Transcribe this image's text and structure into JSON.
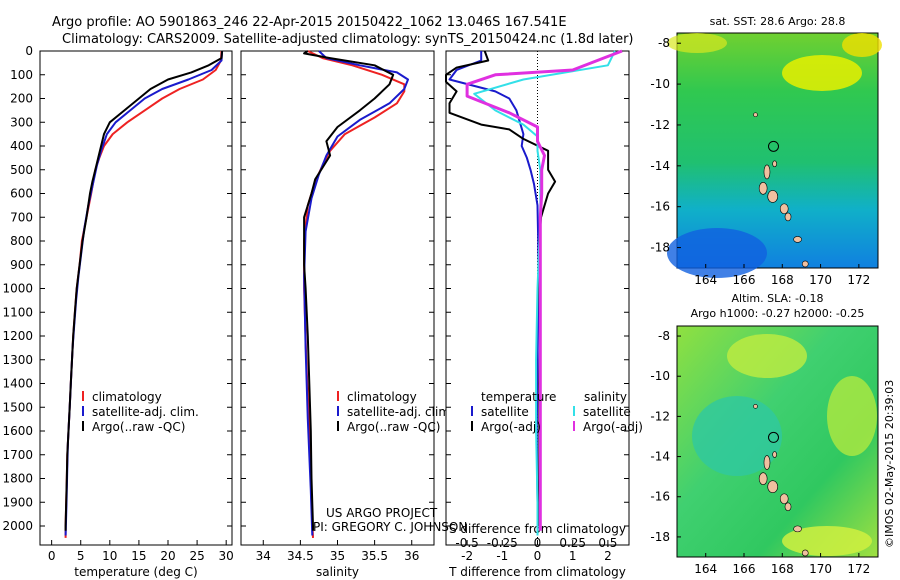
{
  "header": {
    "line1": "Argo profile: AO 5901863_246 22-Apr-2015 20150422_1062 13.046S 167.541E",
    "line2": "Climatology: CARS2009. Satellite-adjusted climatology: synTS_20150424.nc (1.8d later)"
  },
  "credit": {
    "line1": "US ARGO PROJECT",
    "line2": "PI: GREGORY C. JOHNSON",
    "imos": "©IMOS 02-May-2015 20:39:03"
  },
  "colors": {
    "climatology": "#ee2222",
    "satellite": "#1a1acc",
    "argo": "#000000",
    "sal_satellite": "#33e0e8",
    "sal_argo": "#e030e0"
  },
  "chart_data": [
    {
      "type": "line",
      "xlabel": "temperature (deg C)",
      "xlim": [
        -2,
        31
      ],
      "xticks": [
        "0",
        "5",
        "10",
        "15",
        "20",
        "25",
        "30"
      ],
      "ylim": [
        2080,
        0
      ],
      "yticks": [
        "0",
        "100",
        "200",
        "300",
        "400",
        "500",
        "600",
        "700",
        "800",
        "900",
        "1000",
        "1100",
        "1200",
        "1300",
        "1400",
        "1500",
        "1600",
        "1700",
        "1800",
        "1900",
        "2000"
      ],
      "legend": [
        "climatology",
        "satellite-adj. clim.",
        "Argo(..raw -QC)"
      ],
      "series": [
        {
          "name": "climatology",
          "color": "#ee2222",
          "points": [
            [
              29.2,
              0
            ],
            [
              29.1,
              40
            ],
            [
              28.2,
              80
            ],
            [
              26,
              120
            ],
            [
              22,
              160
            ],
            [
              19,
              200
            ],
            [
              16,
              250
            ],
            [
              13,
              300
            ],
            [
              10.5,
              350
            ],
            [
              9,
              400
            ],
            [
              8.2,
              450
            ],
            [
              7.5,
              500
            ],
            [
              6.8,
              600
            ],
            [
              6,
              700
            ],
            [
              5.2,
              800
            ],
            [
              4.8,
              900
            ],
            [
              4.3,
              1000
            ],
            [
              4,
              1100
            ],
            [
              3.7,
              1200
            ],
            [
              3.5,
              1300
            ],
            [
              3.3,
              1400
            ],
            [
              3.1,
              1500
            ],
            [
              2.9,
              1600
            ],
            [
              2.7,
              1700
            ],
            [
              2.6,
              1800
            ],
            [
              2.5,
              1900
            ],
            [
              2.4,
              2000
            ],
            [
              2.4,
              2050
            ]
          ]
        },
        {
          "name": "satellite-adj. clim.",
          "color": "#1a1acc",
          "points": [
            [
              29.3,
              0
            ],
            [
              29.2,
              40
            ],
            [
              27.5,
              80
            ],
            [
              23.5,
              120
            ],
            [
              19,
              160
            ],
            [
              16,
              200
            ],
            [
              13.5,
              250
            ],
            [
              11,
              300
            ],
            [
              9.5,
              350
            ],
            [
              8.5,
              420
            ],
            [
              7.8,
              480
            ],
            [
              7.1,
              560
            ],
            [
              6.3,
              650
            ],
            [
              5.6,
              750
            ],
            [
              5.1,
              850
            ],
            [
              4.6,
              950
            ],
            [
              4.2,
              1050
            ],
            [
              3.9,
              1150
            ],
            [
              3.6,
              1250
            ],
            [
              3.4,
              1350
            ],
            [
              3.2,
              1450
            ],
            [
              3,
              1550
            ],
            [
              2.8,
              1650
            ],
            [
              2.7,
              1750
            ],
            [
              2.6,
              1850
            ],
            [
              2.5,
              1950
            ],
            [
              2.4,
              2040
            ]
          ]
        },
        {
          "name": "Argo(..raw -QC)",
          "color": "#000000",
          "points": [
            [
              29.3,
              0
            ],
            [
              29.2,
              30
            ],
            [
              27,
              60
            ],
            [
              24,
              90
            ],
            [
              20,
              120
            ],
            [
              17,
              160
            ],
            [
              15,
              200
            ],
            [
              12.5,
              250
            ],
            [
              10,
              300
            ],
            [
              9,
              350
            ],
            [
              8.5,
              400
            ],
            [
              8,
              450
            ],
            [
              7.5,
              500
            ],
            [
              7,
              550
            ],
            [
              6.6,
              600
            ],
            [
              6,
              700
            ],
            [
              5.3,
              800
            ],
            [
              4.8,
              900
            ],
            [
              4.3,
              1000
            ],
            [
              4,
              1100
            ],
            [
              3.7,
              1200
            ],
            [
              3.5,
              1300
            ],
            [
              3.3,
              1400
            ],
            [
              3.1,
              1500
            ],
            [
              2.9,
              1600
            ],
            [
              2.7,
              1700
            ],
            [
              2.6,
              1800
            ],
            [
              2.5,
              1900
            ],
            [
              2.4,
              2000
            ],
            [
              2.4,
              2020
            ]
          ]
        }
      ]
    },
    {
      "type": "line",
      "xlabel": "salinity",
      "xlim": [
        33.7,
        36.3
      ],
      "xticks": [
        "34",
        "34.5",
        "35",
        "35.5",
        "36"
      ],
      "ylim": [
        2080,
        0
      ],
      "legend": [
        "climatology",
        "satellite-adj. clim.",
        "Argo(..raw -QC)"
      ],
      "series": [
        {
          "name": "climatology",
          "color": "#ee2222",
          "points": [
            [
              34.6,
              0
            ],
            [
              34.8,
              30
            ],
            [
              35.2,
              60
            ],
            [
              35.6,
              100
            ],
            [
              35.9,
              140
            ],
            [
              35.9,
              170
            ],
            [
              35.8,
              220
            ],
            [
              35.5,
              280
            ],
            [
              35.1,
              350
            ],
            [
              34.9,
              420
            ],
            [
              34.8,
              480
            ],
            [
              34.7,
              550
            ],
            [
              34.6,
              650
            ],
            [
              34.55,
              800
            ],
            [
              34.55,
              1000
            ],
            [
              34.58,
              1300
            ],
            [
              34.62,
              1600
            ],
            [
              34.65,
              1900
            ],
            [
              34.67,
              2050
            ]
          ]
        },
        {
          "name": "satellite-adj. clim.",
          "color": "#1a1acc",
          "points": [
            [
              34.75,
              0
            ],
            [
              34.85,
              30
            ],
            [
              35.3,
              60
            ],
            [
              35.8,
              90
            ],
            [
              35.95,
              120
            ],
            [
              35.9,
              160
            ],
            [
              35.7,
              220
            ],
            [
              35.3,
              290
            ],
            [
              35.0,
              360
            ],
            [
              34.85,
              440
            ],
            [
              34.75,
              520
            ],
            [
              34.65,
              620
            ],
            [
              34.57,
              760
            ],
            [
              34.55,
              950
            ],
            [
              34.57,
              1250
            ],
            [
              34.6,
              1550
            ],
            [
              34.64,
              1850
            ],
            [
              34.66,
              2040
            ]
          ]
        },
        {
          "name": "Argo(..raw -QC)",
          "color": "#000000",
          "points": [
            [
              34.6,
              0
            ],
            [
              34.55,
              10
            ],
            [
              34.9,
              30
            ],
            [
              35.5,
              60
            ],
            [
              35.75,
              100
            ],
            [
              35.7,
              140
            ],
            [
              35.5,
              200
            ],
            [
              35.3,
              250
            ],
            [
              35.0,
              320
            ],
            [
              34.85,
              380
            ],
            [
              34.9,
              440
            ],
            [
              34.8,
              490
            ],
            [
              34.7,
              540
            ],
            [
              34.65,
              600
            ],
            [
              34.55,
              700
            ],
            [
              34.55,
              800
            ],
            [
              34.55,
              900
            ],
            [
              34.57,
              1000
            ],
            [
              34.6,
              1200
            ],
            [
              34.62,
              1400
            ],
            [
              34.64,
              1600
            ],
            [
              34.65,
              1800
            ],
            [
              34.67,
              2000
            ],
            [
              34.67,
              2020
            ]
          ]
        }
      ]
    },
    {
      "type": "line",
      "xlabel": "T difference from climatology",
      "xlabel_top": "S difference from climatology",
      "xlim": [
        -2.6,
        2.6
      ],
      "xticks": [
        "-2",
        "-1",
        "0",
        "1",
        "2"
      ],
      "xticks_top": [
        "-0.5",
        "-0.25",
        "0",
        "0.25",
        "0.5"
      ],
      "ylim": [
        2080,
        0
      ],
      "legend_heads": [
        "temperature",
        "salinity"
      ],
      "legend": [
        "satellite",
        "Argo(-adj)",
        "satellite",
        "Argo(-adj)"
      ],
      "series": [
        {
          "name": "satellite",
          "color": "#1a1acc",
          "points": [
            [
              -1.6,
              0
            ],
            [
              -1.6,
              40
            ],
            [
              -2.3,
              80
            ],
            [
              -2.5,
              120
            ],
            [
              -1.2,
              170
            ],
            [
              -0.8,
              200
            ],
            [
              -0.6,
              250
            ],
            [
              -0.5,
              300
            ],
            [
              -0.4,
              350
            ],
            [
              -0.45,
              400
            ],
            [
              -0.3,
              450
            ],
            [
              -0.2,
              500
            ],
            [
              -0.1,
              560
            ],
            [
              0,
              650
            ],
            [
              0.02,
              800
            ],
            [
              0.03,
              1000
            ],
            [
              0,
              1300
            ],
            [
              -0.02,
              1600
            ],
            [
              0,
              1900
            ],
            [
              0,
              2040
            ]
          ]
        },
        {
          "name": "Argo(-adj)",
          "color": "#000000",
          "points": [
            [
              -1.5,
              0
            ],
            [
              -1.4,
              40
            ],
            [
              -2.3,
              70
            ],
            [
              -2.6,
              100
            ],
            [
              -2.6,
              130
            ],
            [
              -2.3,
              170
            ],
            [
              -2.5,
              220
            ],
            [
              -2.5,
              260
            ],
            [
              -1.6,
              310
            ],
            [
              -0.8,
              330
            ],
            [
              -0.4,
              370
            ],
            [
              0.3,
              420
            ],
            [
              0.3,
              500
            ],
            [
              0.5,
              550
            ],
            [
              0.3,
              600
            ],
            [
              0.1,
              700
            ],
            [
              0.05,
              800
            ],
            [
              0.08,
              900
            ],
            [
              0.05,
              1000
            ],
            [
              0.08,
              1200
            ],
            [
              0.05,
              1400
            ],
            [
              0.05,
              1600
            ],
            [
              0.05,
              1800
            ],
            [
              0.02,
              2000
            ]
          ]
        },
        {
          "name": "satellite",
          "color": "#33e0e8",
          "points": [
            [
              0.55,
              0
            ],
            [
              0.5,
              60
            ],
            [
              -0.1,
              120
            ],
            [
              -0.45,
              180
            ],
            [
              -0.3,
              250
            ],
            [
              -0.1,
              310
            ],
            [
              0,
              360
            ],
            [
              0,
              420
            ],
            [
              0.02,
              500
            ],
            [
              0.02,
              700
            ],
            [
              0,
              1000
            ],
            [
              -0.01,
              1300
            ],
            [
              -0.01,
              1600
            ],
            [
              0,
              1900
            ],
            [
              0,
              2040
            ]
          ]
        },
        {
          "name": "Argo(-adj)",
          "color": "#e030e0",
          "points": [
            [
              0.6,
              0
            ],
            [
              0.25,
              80
            ],
            [
              -0.3,
              100
            ],
            [
              -0.5,
              140
            ],
            [
              -0.5,
              190
            ],
            [
              -0.2,
              260
            ],
            [
              0,
              320
            ],
            [
              0,
              380
            ],
            [
              0.05,
              440
            ],
            [
              0.03,
              500
            ],
            [
              0.03,
              600
            ],
            [
              0.02,
              700
            ],
            [
              0.02,
              800
            ],
            [
              0.02,
              1000
            ],
            [
              0.02,
              1300
            ],
            [
              0.02,
              1600
            ],
            [
              0.02,
              1900
            ],
            [
              0.02,
              2020
            ]
          ]
        }
      ]
    },
    {
      "type": "heatmap",
      "title": "sat. SST: 28.6 Argo: 28.8",
      "xticks": [
        "164",
        "166",
        "168",
        "170",
        "172"
      ],
      "yticks": [
        "-8",
        "-10",
        "-12",
        "-14",
        "-16",
        "-18"
      ],
      "xlim": [
        162.5,
        173
      ],
      "ylim": [
        -19,
        -7.5
      ],
      "marker": {
        "lon": 167.541,
        "lat": -13.046
      }
    },
    {
      "type": "heatmap",
      "title_line1": "Altim. SLA: -0.18",
      "title_line2": "Argo h1000: -0.27 h2000: -0.25",
      "xticks": [
        "164",
        "166",
        "168",
        "170",
        "172"
      ],
      "yticks": [
        "-8",
        "-10",
        "-12",
        "-14",
        "-16",
        "-18"
      ],
      "xlim": [
        162.5,
        173
      ],
      "ylim": [
        -19,
        -7.5
      ],
      "marker": {
        "lon": 167.541,
        "lat": -13.046
      }
    }
  ]
}
